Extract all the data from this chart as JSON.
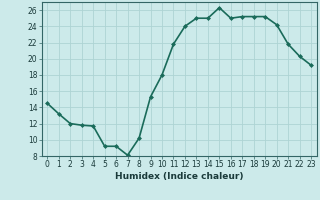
{
  "x": [
    0,
    1,
    2,
    3,
    4,
    5,
    6,
    7,
    8,
    9,
    10,
    11,
    12,
    13,
    14,
    15,
    16,
    17,
    18,
    19,
    20,
    21,
    22,
    23
  ],
  "y": [
    14.5,
    13.2,
    12.0,
    11.8,
    11.7,
    9.2,
    9.2,
    8.1,
    10.2,
    15.3,
    18.0,
    21.8,
    24.0,
    25.0,
    25.0,
    26.3,
    25.0,
    25.2,
    25.2,
    25.2,
    24.2,
    21.8,
    20.3,
    19.2
  ],
  "line_color": "#1a6b5a",
  "marker": "D",
  "marker_size": 2.0,
  "bg_color": "#cceaea",
  "grid_color": "#aed4d4",
  "xlabel": "Humidex (Indice chaleur)",
  "ylim": [
    8,
    27
  ],
  "xlim": [
    -0.5,
    23.5
  ],
  "yticks": [
    8,
    10,
    12,
    14,
    16,
    18,
    20,
    22,
    24,
    26
  ],
  "xticks": [
    0,
    1,
    2,
    3,
    4,
    5,
    6,
    7,
    8,
    9,
    10,
    11,
    12,
    13,
    14,
    15,
    16,
    17,
    18,
    19,
    20,
    21,
    22,
    23
  ],
  "tick_fontsize": 5.5,
  "xlabel_fontsize": 6.5,
  "linewidth": 1.2
}
